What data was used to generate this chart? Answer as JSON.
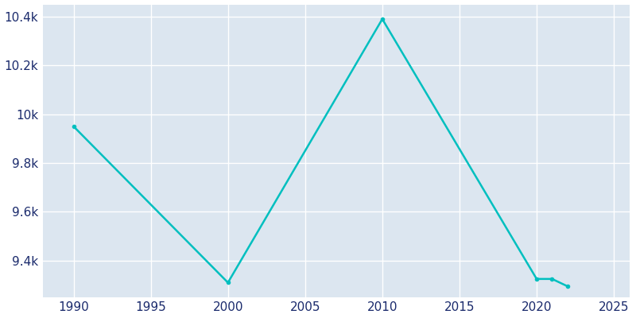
{
  "years": [
    1990,
    2000,
    2010,
    2020,
    2021,
    2022
  ],
  "population": [
    9950,
    9310,
    10390,
    9325,
    9325,
    9295
  ],
  "line_color": "#00BFBF",
  "marker": "o",
  "marker_size": 3,
  "line_width": 1.8,
  "fig_background_color": "#ffffff",
  "plot_background_color": "#dce6f0",
  "grid_color": "#ffffff",
  "tick_color": "#1a2a6c",
  "xlim": [
    1988,
    2026
  ],
  "ylim": [
    9250,
    10450
  ],
  "xticks": [
    1990,
    1995,
    2000,
    2005,
    2010,
    2015,
    2020,
    2025
  ],
  "ytick_values": [
    9400,
    9600,
    9800,
    10000,
    10200,
    10400
  ],
  "ytick_labels": [
    "9.4k",
    "9.6k",
    "9.8k",
    "10k",
    "10.2k",
    "10.4k"
  ],
  "tick_fontsize": 11
}
